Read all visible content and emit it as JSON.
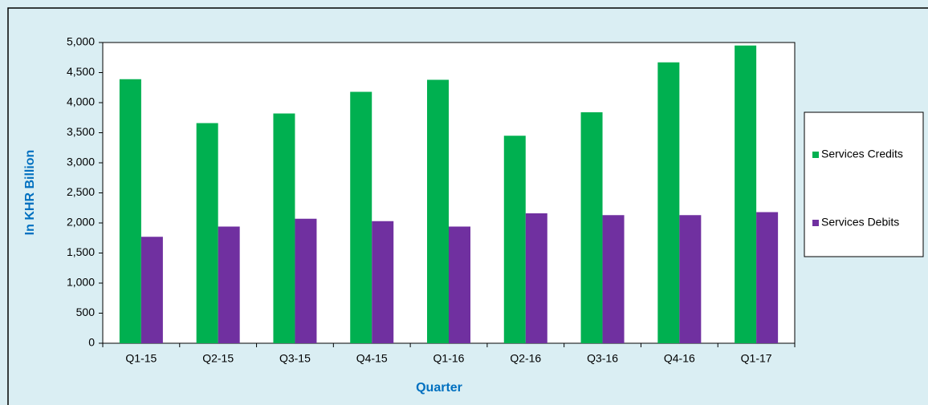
{
  "chart_data": {
    "type": "bar",
    "x_label": "Quarter",
    "y_label": "In KHR Billion",
    "categories": [
      "Q1-15",
      "Q2-15",
      "Q3-15",
      "Q4-15",
      "Q1-16",
      "Q2-16",
      "Q3-16",
      "Q4-16",
      "Q1-17"
    ],
    "series": [
      {
        "name": "Services Credits",
        "color": "#00b050",
        "values": [
          4390,
          3660,
          3820,
          4180,
          4380,
          3450,
          3840,
          4670,
          4950
        ]
      },
      {
        "name": "Services Debits",
        "color": "#7030a0",
        "values": [
          1770,
          1940,
          2070,
          2030,
          1940,
          2160,
          2130,
          2130,
          2180
        ]
      }
    ],
    "ylim": [
      0,
      5000
    ],
    "yticks": [
      0,
      500,
      {
        "value": 1000,
        "label": "1,000"
      },
      {
        "value": 1500,
        "label": "1,500"
      },
      {
        "value": 2000,
        "label": "2,000"
      },
      {
        "value": 2500,
        "label": "2,500"
      },
      {
        "value": 3000,
        "label": "3,000"
      },
      {
        "value": 3500,
        "label": "3,500"
      },
      {
        "value": 4000,
        "label": "4,000"
      },
      {
        "value": 4500,
        "label": "4,500"
      },
      {
        "value": 5000,
        "label": "5,000"
      }
    ],
    "legend": "right"
  }
}
